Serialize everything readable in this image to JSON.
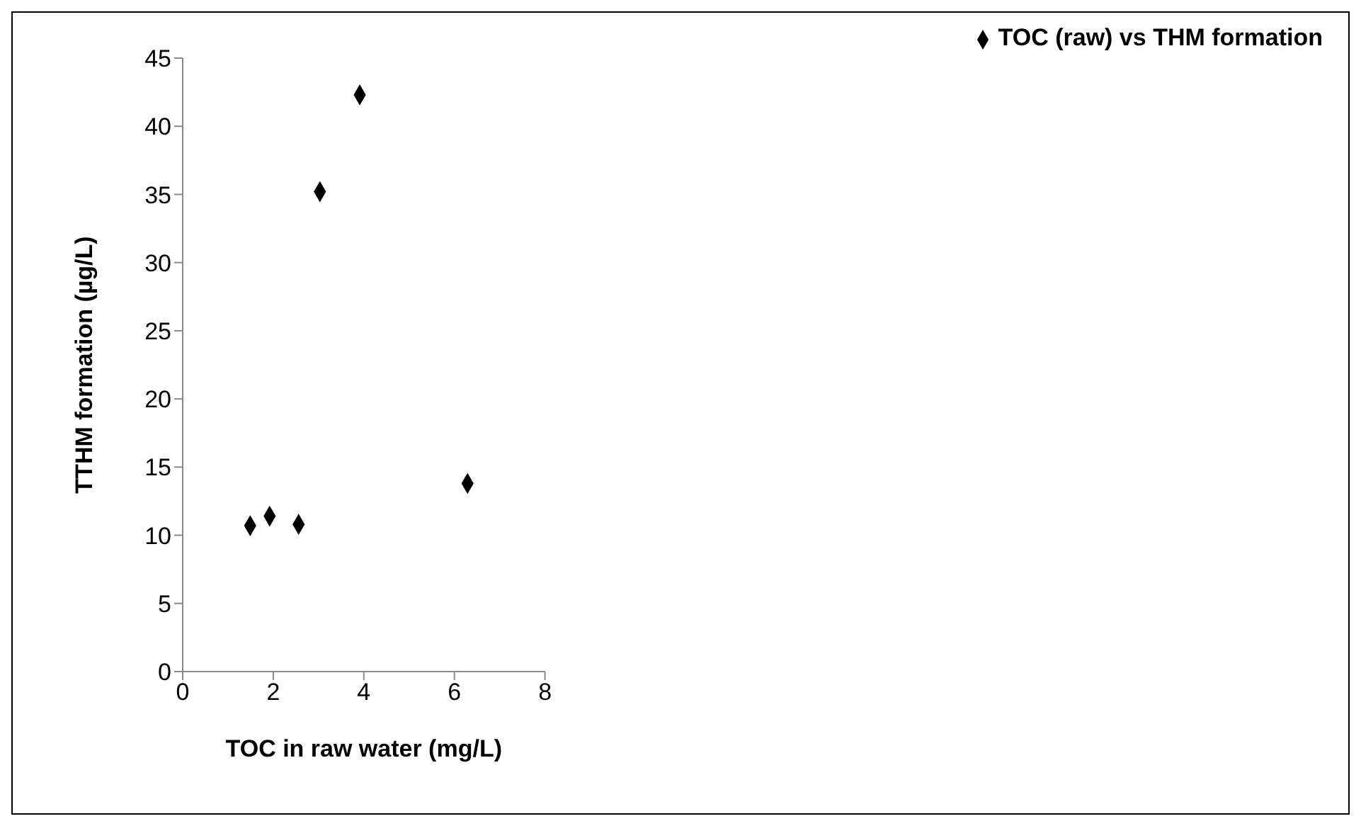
{
  "chart_data": {
    "type": "scatter",
    "xlabel": "TOC in raw water (mg/L)",
    "ylabel": "TTHM formation (µg/L)",
    "x": [
      1.49,
      1.92,
      2.56,
      3.03,
      3.91,
      6.29
    ],
    "series": [
      {
        "name": "TOC (raw) vs THM formation",
        "color": "#000000",
        "values": [
          10.7,
          11.4,
          10.8,
          35.2,
          42.3,
          13.8
        ]
      }
    ],
    "xlim": [
      0,
      8
    ],
    "xticks": [
      0,
      2,
      4,
      6,
      8
    ],
    "ylim": [
      0,
      45
    ],
    "yticks": [
      0,
      5,
      10,
      15,
      20,
      25,
      30,
      35,
      40,
      45
    ],
    "marker": "diamond",
    "legend": "top right",
    "grid": false
  }
}
